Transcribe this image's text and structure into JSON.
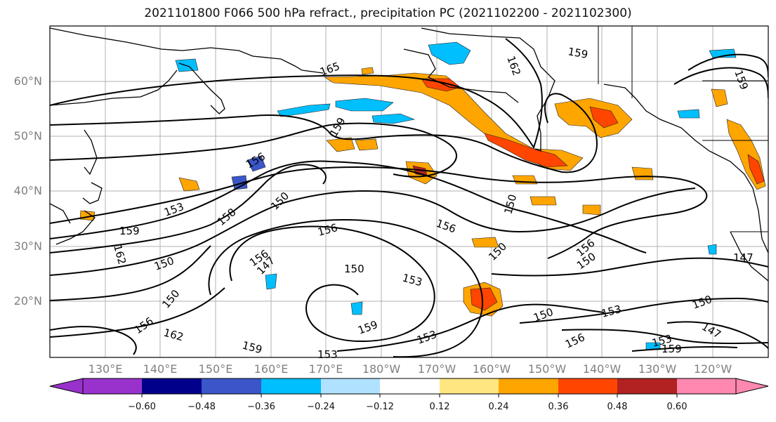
{
  "title": "2021101800 F066 500 hPa refract., precipitation PC (2021102200 - 2021102300)",
  "latitude_labels": [
    "60°N",
    "50°N",
    "40°N",
    "30°N",
    "20°N"
  ],
  "longitude_labels": [
    "130°E",
    "140°E",
    "150°E",
    "160°E",
    "170°E",
    "180°W",
    "170°W",
    "160°W",
    "150°W",
    "140°W",
    "130°W",
    "120°W"
  ],
  "contour_labels": [
    "165",
    "162",
    "159",
    "159",
    "156",
    "153",
    "150",
    "158",
    "156",
    "159",
    "162",
    "150",
    "156",
    "147",
    "150",
    "153",
    "156",
    "150",
    "150",
    "156",
    "150",
    "150",
    "153",
    "159",
    "150",
    "153",
    "156",
    "153",
    "159",
    "147",
    "162",
    "156",
    "159",
    "153",
    "159",
    "147",
    "150"
  ],
  "colorbar": {
    "colors": [
      "#9932cc",
      "#00008b",
      "#3a56c8",
      "#00bfff",
      "#b0e2ff",
      "#ffffff",
      "#ffe680",
      "#ffa500",
      "#ff4500",
      "#b22222",
      "#ff88b0"
    ],
    "tick_labels": [
      "−0.60",
      "−0.48",
      "−0.36",
      "−0.24",
      "−0.12",
      "0.12",
      "0.24",
      "0.36",
      "0.48",
      "0.60"
    ]
  }
}
